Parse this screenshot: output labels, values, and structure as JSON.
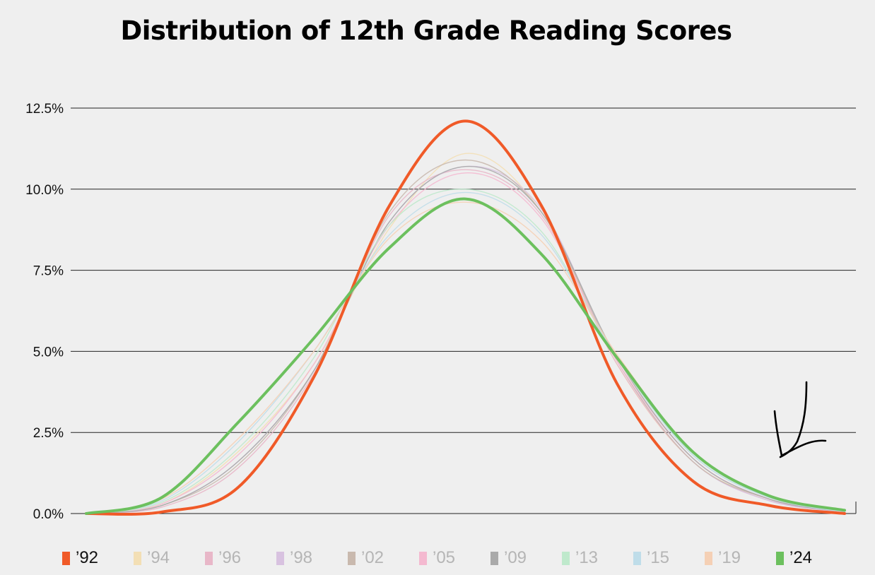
{
  "chart_data": {
    "type": "line",
    "title": "Distribution of 12th Grade Reading Scores",
    "xlabel": "",
    "ylabel": "",
    "ylim": [
      0,
      12.5
    ],
    "yticks": [
      "0.0%",
      "2.5%",
      "5.0%",
      "7.5%",
      "10.0%",
      "12.5%"
    ],
    "grid": true,
    "legend_position": "bottom",
    "x": [
      0,
      10,
      20,
      30,
      40,
      50,
      60,
      70,
      80,
      90,
      100
    ],
    "series": [
      {
        "name": "’92",
        "color": "#f05a28",
        "highlight": true,
        "values": [
          0.0,
          0.05,
          0.8,
          4.2,
          9.5,
          12.1,
          9.5,
          4.0,
          1.0,
          0.25,
          0.0
        ]
      },
      {
        "name": "’94",
        "color": "#f3dfb5",
        "highlight": false,
        "values": [
          0.0,
          0.3,
          1.9,
          4.6,
          8.8,
          11.1,
          9.3,
          4.6,
          1.6,
          0.45,
          0.05
        ]
      },
      {
        "name": "’96",
        "color": "#e8b7c8",
        "highlight": false,
        "values": [
          0.0,
          0.2,
          1.4,
          4.3,
          9.2,
          10.6,
          9.2,
          4.6,
          1.6,
          0.4,
          0.05
        ]
      },
      {
        "name": "’98",
        "color": "#d8c2e0",
        "highlight": false,
        "values": [
          0.0,
          0.25,
          1.6,
          4.4,
          9.0,
          10.7,
          9.4,
          4.7,
          1.6,
          0.4,
          0.05
        ]
      },
      {
        "name": "’02",
        "color": "#c9b9ae",
        "highlight": false,
        "values": [
          0.0,
          0.25,
          1.5,
          4.4,
          9.3,
          10.9,
          9.3,
          4.7,
          1.6,
          0.45,
          0.05
        ]
      },
      {
        "name": "’05",
        "color": "#f4b9d0",
        "highlight": false,
        "values": [
          0.0,
          0.3,
          1.8,
          4.6,
          8.9,
          10.5,
          9.1,
          4.7,
          1.7,
          0.45,
          0.05
        ]
      },
      {
        "name": "’09",
        "color": "#aaaaaa",
        "highlight": false,
        "values": [
          0.0,
          0.25,
          1.6,
          4.4,
          9.0,
          10.7,
          9.3,
          4.8,
          1.7,
          0.45,
          0.05
        ]
      },
      {
        "name": "’13",
        "color": "#bfe9cc",
        "highlight": false,
        "values": [
          0.0,
          0.35,
          2.0,
          4.8,
          8.9,
          10.0,
          8.7,
          4.8,
          1.8,
          0.5,
          0.05
        ]
      },
      {
        "name": "’15",
        "color": "#bfdde9",
        "highlight": false,
        "values": [
          0.0,
          0.4,
          2.2,
          5.0,
          8.6,
          9.9,
          8.6,
          4.8,
          1.8,
          0.5,
          0.05
        ]
      },
      {
        "name": "’19",
        "color": "#f5d0b5",
        "highlight": false,
        "values": [
          0.0,
          0.45,
          2.3,
          5.0,
          8.5,
          9.6,
          8.4,
          4.9,
          1.9,
          0.55,
          0.1
        ]
      },
      {
        "name": "’24",
        "color": "#6cc05e",
        "highlight": true,
        "values": [
          0.0,
          0.5,
          2.8,
          5.4,
          8.2,
          9.7,
          8.0,
          4.8,
          1.9,
          0.55,
          0.1
        ]
      }
    ]
  },
  "annotation": {
    "icon": "hand-drawn-arrow-icon",
    "color": "#000000"
  }
}
